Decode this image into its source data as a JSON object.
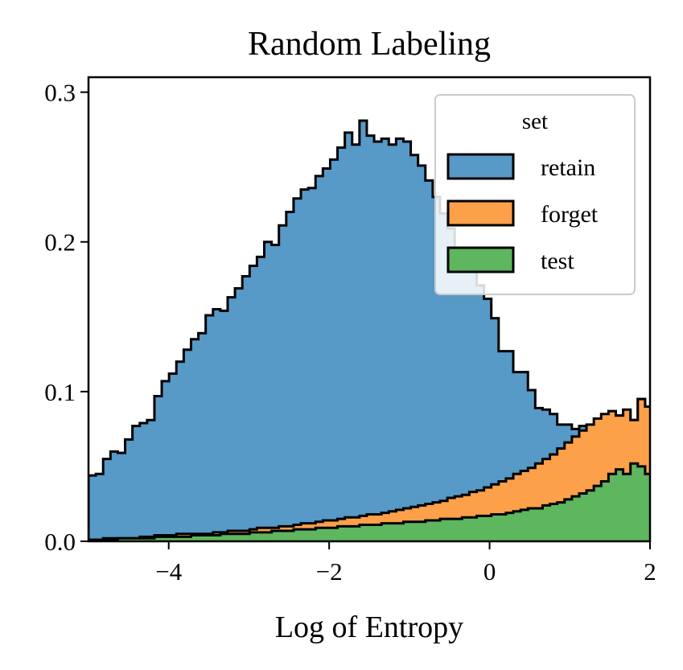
{
  "chart_data": {
    "type": "histogram-stacked-step",
    "title": "Random Labeling",
    "xlabel": "Log of Entropy",
    "ylabel": "",
    "xlim": [
      -5.0,
      2.0
    ],
    "ylim": [
      0,
      0.31
    ],
    "xticks": [
      -4,
      -2,
      0,
      2
    ],
    "xtick_labels": [
      "−4",
      "−2",
      "0",
      "2"
    ],
    "yticks": [
      0.0,
      0.1,
      0.2,
      0.3
    ],
    "ytick_labels": [
      "0.0",
      "0.1",
      "0.2",
      "0.3"
    ],
    "grid": false,
    "bin_start": -5.0,
    "bin_width": 0.0913,
    "legend": {
      "title": "set",
      "location": "top-right"
    },
    "series": [
      {
        "name": "retain",
        "color": "#5799c7",
        "stacked_top": [
          0.044,
          0.045,
          0.055,
          0.06,
          0.059,
          0.068,
          0.077,
          0.079,
          0.081,
          0.097,
          0.107,
          0.112,
          0.12,
          0.128,
          0.135,
          0.139,
          0.151,
          0.155,
          0.154,
          0.163,
          0.169,
          0.177,
          0.184,
          0.19,
          0.2,
          0.198,
          0.211,
          0.22,
          0.229,
          0.235,
          0.236,
          0.244,
          0.249,
          0.255,
          0.263,
          0.273,
          0.265,
          0.281,
          0.271,
          0.267,
          0.269,
          0.265,
          0.269,
          0.267,
          0.258,
          0.251,
          0.241,
          0.23,
          0.219,
          0.209,
          0.196,
          0.185,
          0.18,
          0.171,
          0.162,
          0.149,
          0.127,
          0.127,
          0.113,
          0.113,
          0.101,
          0.089,
          0.088,
          0.085,
          0.078,
          0.078,
          0.075,
          0.077,
          0.075,
          0.072,
          0.075,
          0.078,
          0.084,
          0.087,
          0.081,
          0.095,
          0.09,
          0.098,
          0.093,
          0.084,
          0.087,
          0.0
        ]
      },
      {
        "name": "forget",
        "color": "#fca04a",
        "stacked_top": [
          0.001,
          0.001,
          0.002,
          0.002,
          0.002,
          0.002,
          0.002,
          0.003,
          0.003,
          0.004,
          0.004,
          0.004,
          0.005,
          0.005,
          0.005,
          0.005,
          0.005,
          0.006,
          0.006,
          0.007,
          0.007,
          0.007,
          0.008,
          0.009,
          0.009,
          0.009,
          0.01,
          0.01,
          0.011,
          0.012,
          0.012,
          0.013,
          0.014,
          0.014,
          0.015,
          0.016,
          0.016,
          0.017,
          0.018,
          0.018,
          0.019,
          0.02,
          0.021,
          0.022,
          0.023,
          0.024,
          0.025,
          0.026,
          0.027,
          0.029,
          0.03,
          0.031,
          0.033,
          0.034,
          0.036,
          0.038,
          0.04,
          0.042,
          0.045,
          0.047,
          0.049,
          0.052,
          0.055,
          0.058,
          0.062,
          0.066,
          0.07,
          0.074,
          0.078,
          0.082,
          0.085,
          0.087,
          0.084,
          0.088,
          0.081,
          0.095,
          0.09,
          0.098,
          0.093,
          0.084,
          0.087,
          0.0
        ]
      },
      {
        "name": "test",
        "color": "#5eb65e",
        "stacked_top": [
          0.001,
          0.001,
          0.001,
          0.001,
          0.002,
          0.002,
          0.002,
          0.002,
          0.002,
          0.003,
          0.003,
          0.003,
          0.003,
          0.003,
          0.004,
          0.004,
          0.004,
          0.004,
          0.005,
          0.005,
          0.005,
          0.005,
          0.006,
          0.006,
          0.006,
          0.007,
          0.007,
          0.007,
          0.008,
          0.008,
          0.008,
          0.009,
          0.009,
          0.009,
          0.01,
          0.01,
          0.01,
          0.011,
          0.011,
          0.011,
          0.012,
          0.012,
          0.012,
          0.013,
          0.013,
          0.013,
          0.014,
          0.014,
          0.015,
          0.015,
          0.015,
          0.016,
          0.016,
          0.017,
          0.017,
          0.018,
          0.018,
          0.019,
          0.02,
          0.021,
          0.022,
          0.022,
          0.024,
          0.025,
          0.026,
          0.028,
          0.03,
          0.032,
          0.034,
          0.037,
          0.04,
          0.045,
          0.048,
          0.045,
          0.052,
          0.05,
          0.045,
          0.041,
          0.035,
          0.025,
          0.012,
          0.0
        ]
      }
    ]
  }
}
